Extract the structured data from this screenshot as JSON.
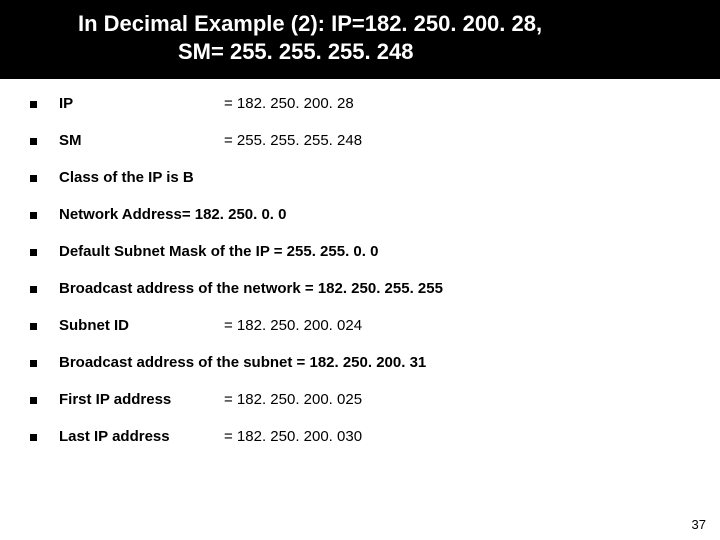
{
  "title": {
    "line1": "In Decimal Example (2): IP=182. 250. 200. 28,",
    "line2": "SM= 255. 255. 255. 248"
  },
  "items": [
    {
      "label": "IP",
      "value": "= 182. 250. 200. 28"
    },
    {
      "label": "SM",
      "value": "= 255. 255. 255. 248"
    },
    {
      "single": "Class of the IP is  B"
    },
    {
      "single": "Network Address= 182. 250. 0. 0"
    },
    {
      "single": "Default Subnet Mask of the IP = 255. 255. 0. 0"
    },
    {
      "single": "Broadcast address of the network =  182. 250. 255. 255"
    },
    {
      "label": "Subnet ID",
      "value": "= 182. 250. 200. 024"
    },
    {
      "single": "Broadcast address of the subnet  = 182. 250. 200. 31"
    },
    {
      "label": "First IP address",
      "value": "= 182. 250. 200. 025"
    },
    {
      "label": "Last IP address",
      "value": " = 182. 250. 200. 030"
    }
  ],
  "page_number": "37",
  "colors": {
    "title_bg": "#000000",
    "title_fg": "#ffffff",
    "body_fg": "#000000",
    "page_bg": "#ffffff"
  },
  "fonts": {
    "title_size_pt": 22,
    "body_size_pt": 15,
    "title_weight": "bold",
    "body_weight_label": "bold",
    "body_weight_value": "normal"
  }
}
